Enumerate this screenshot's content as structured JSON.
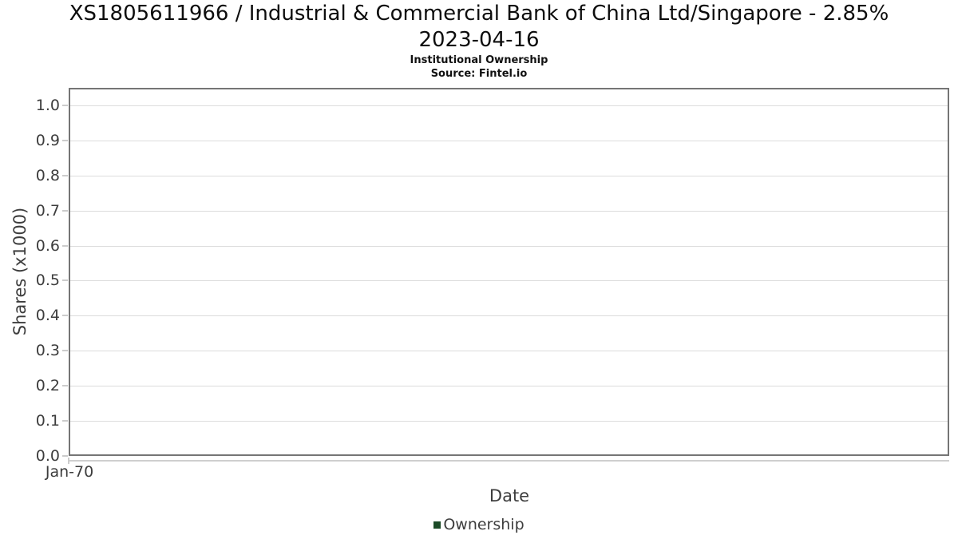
{
  "chart_data": {
    "type": "line",
    "title_line1": "XS1805611966 / Industrial & Commercial Bank of China Ltd/Singapore - 2.85%",
    "title_line2": "2023-04-16",
    "subtitle": "Institutional Ownership",
    "source": "Source: Fintel.io",
    "xlabel": "Date",
    "ylabel": "Shares (x1000)",
    "x_tick_labels": [
      "Jan-70"
    ],
    "y_tick_labels": [
      "0.0",
      "0.1",
      "0.2",
      "0.3",
      "0.4",
      "0.5",
      "0.6",
      "0.7",
      "0.8",
      "0.9",
      "1.0"
    ],
    "y_tick_values": [
      0,
      0.1,
      0.2,
      0.3,
      0.4,
      0.5,
      0.6,
      0.7,
      0.8,
      0.9,
      1.0
    ],
    "ylim": [
      0,
      1.05
    ],
    "grid": true,
    "legend": {
      "position": "bottom",
      "entries": [
        {
          "label": "Ownership",
          "color": "#1c4b27"
        }
      ]
    },
    "series": [
      {
        "name": "Ownership",
        "x": [],
        "values": []
      }
    ],
    "colors": {
      "frame": "#757575",
      "gridline": "#dcdcdc",
      "tick": "#cccccc",
      "text": "#3d3d3d",
      "title": "#0d0d0d"
    }
  }
}
